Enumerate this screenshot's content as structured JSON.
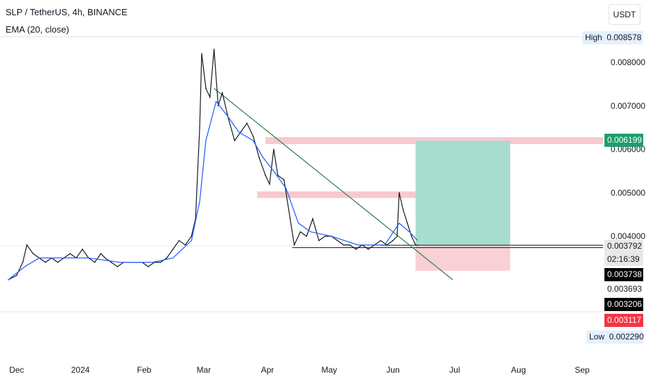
{
  "header": {
    "symbol_line": "SLP / TetherUS, 4h, BINANCE",
    "indicator_line": "EMA (20, close)"
  },
  "unit_button": "USDT",
  "colors": {
    "price": "#131722",
    "ema": "#2962ff",
    "trendline": "#2e7d4f",
    "zone": "#f7c3c9",
    "target": "#a8dccf",
    "stop": "#f9d0d6",
    "current_label": "#1e9e6b",
    "red_label": "#f23645",
    "black_label": "#000000"
  },
  "price_labels": {
    "high_caption": "High",
    "high_value": "0.008578",
    "low_caption": "Low",
    "low_value": "0.002290",
    "current": "0.006199",
    "last": "0.003792",
    "countdown": "02:16:39",
    "level_1": "0.003738",
    "level_2": "0.003693",
    "level_3": "0.003206",
    "level_4": "0.003117"
  },
  "chart_data": {
    "type": "line",
    "title": "SLP / TetherUS, 4h, BINANCE",
    "y_ticks": [
      "0.008000",
      "0.007000",
      "0.006000",
      "0.005000",
      "0.004000"
    ],
    "x_ticks": [
      "Dec",
      "2024",
      "Feb",
      "Mar",
      "Apr",
      "May",
      "Jun",
      "Jul",
      "Aug",
      "Sep"
    ],
    "x_tick_dates": [
      "2023-12-01",
      "2024-01-01",
      "2024-02-01",
      "2024-03-01",
      "2024-04-01",
      "2024-05-01",
      "2024-06-01",
      "2024-07-01",
      "2024-08-01",
      "2024-09-01"
    ],
    "ylim": [
      0.0019,
      0.0092
    ],
    "price_series": {
      "name": "SLP / TetherUS",
      "points": [
        [
          "2023-11-27",
          0.003
        ],
        [
          "2023-12-01",
          0.0031
        ],
        [
          "2023-12-04",
          0.0034
        ],
        [
          "2023-12-06",
          0.0038
        ],
        [
          "2023-12-09",
          0.0036
        ],
        [
          "2023-12-12",
          0.0035
        ],
        [
          "2023-12-15",
          0.0034
        ],
        [
          "2023-12-18",
          0.0035
        ],
        [
          "2023-12-21",
          0.0034
        ],
        [
          "2023-12-24",
          0.0035
        ],
        [
          "2023-12-27",
          0.0036
        ],
        [
          "2023-12-30",
          0.0035
        ],
        [
          "2024-01-02",
          0.0037
        ],
        [
          "2024-01-05",
          0.0035
        ],
        [
          "2024-01-08",
          0.0034
        ],
        [
          "2024-01-11",
          0.0036
        ],
        [
          "2024-01-13",
          0.0035
        ],
        [
          "2024-01-16",
          0.0034
        ],
        [
          "2024-01-19",
          0.0033
        ],
        [
          "2024-01-22",
          0.0034
        ],
        [
          "2024-01-25",
          0.0034
        ],
        [
          "2024-01-28",
          0.0034
        ],
        [
          "2024-01-31",
          0.0034
        ],
        [
          "2024-02-03",
          0.0033
        ],
        [
          "2024-02-06",
          0.0034
        ],
        [
          "2024-02-09",
          0.0034
        ],
        [
          "2024-02-12",
          0.0035
        ],
        [
          "2024-02-15",
          0.0037
        ],
        [
          "2024-02-18",
          0.0039
        ],
        [
          "2024-02-21",
          0.0038
        ],
        [
          "2024-02-24",
          0.004
        ],
        [
          "2024-02-26",
          0.0044
        ],
        [
          "2024-02-28",
          0.0065
        ],
        [
          "2024-02-29",
          0.0082
        ],
        [
          "2024-03-02",
          0.0074
        ],
        [
          "2024-03-04",
          0.0072
        ],
        [
          "2024-03-06",
          0.0083
        ],
        [
          "2024-03-08",
          0.007
        ],
        [
          "2024-03-10",
          0.0073
        ],
        [
          "2024-03-13",
          0.0067
        ],
        [
          "2024-03-16",
          0.0062
        ],
        [
          "2024-03-19",
          0.0064
        ],
        [
          "2024-03-22",
          0.0066
        ],
        [
          "2024-03-25",
          0.0063
        ],
        [
          "2024-03-28",
          0.0058
        ],
        [
          "2024-03-31",
          0.0054
        ],
        [
          "2024-04-02",
          0.0052
        ],
        [
          "2024-04-04",
          0.006
        ],
        [
          "2024-04-06",
          0.0054
        ],
        [
          "2024-04-09",
          0.0053
        ],
        [
          "2024-04-12",
          0.0044
        ],
        [
          "2024-04-14",
          0.0038
        ],
        [
          "2024-04-17",
          0.0041
        ],
        [
          "2024-04-20",
          0.004
        ],
        [
          "2024-04-23",
          0.0044
        ],
        [
          "2024-04-26",
          0.0039
        ],
        [
          "2024-04-29",
          0.004
        ],
        [
          "2024-05-02",
          0.004
        ],
        [
          "2024-05-05",
          0.0039
        ],
        [
          "2024-05-08",
          0.0038
        ],
        [
          "2024-05-11",
          0.0038
        ],
        [
          "2024-05-14",
          0.0037
        ],
        [
          "2024-05-17",
          0.0038
        ],
        [
          "2024-05-20",
          0.0037
        ],
        [
          "2024-05-23",
          0.0038
        ],
        [
          "2024-05-26",
          0.0039
        ],
        [
          "2024-05-29",
          0.0038
        ],
        [
          "2024-06-01",
          0.0039
        ],
        [
          "2024-06-03",
          0.004
        ],
        [
          "2024-06-04",
          0.005
        ],
        [
          "2024-06-06",
          0.0046
        ],
        [
          "2024-06-08",
          0.0043
        ],
        [
          "2024-06-10",
          0.004
        ],
        [
          "2024-06-12",
          0.0038
        ],
        [
          "2024-06-13",
          0.003792
        ]
      ]
    },
    "ema_series": {
      "name": "EMA (20, close)",
      "points": [
        [
          "2023-11-27",
          0.003
        ],
        [
          "2023-12-05",
          0.0033
        ],
        [
          "2023-12-12",
          0.0035
        ],
        [
          "2023-12-25",
          0.0035
        ],
        [
          "2024-01-05",
          0.0035
        ],
        [
          "2024-01-20",
          0.0034
        ],
        [
          "2024-02-05",
          0.0034
        ],
        [
          "2024-02-15",
          0.0035
        ],
        [
          "2024-02-24",
          0.0039
        ],
        [
          "2024-02-28",
          0.0048
        ],
        [
          "2024-03-02",
          0.0062
        ],
        [
          "2024-03-07",
          0.0071
        ],
        [
          "2024-03-12",
          0.0068
        ],
        [
          "2024-03-18",
          0.0064
        ],
        [
          "2024-03-25",
          0.0062
        ],
        [
          "2024-03-30",
          0.0058
        ],
        [
          "2024-04-04",
          0.0055
        ],
        [
          "2024-04-10",
          0.0051
        ],
        [
          "2024-04-16",
          0.0043
        ],
        [
          "2024-04-22",
          0.0041
        ],
        [
          "2024-05-02",
          0.004
        ],
        [
          "2024-05-15",
          0.0038
        ],
        [
          "2024-05-28",
          0.0038
        ],
        [
          "2024-06-04",
          0.0043
        ],
        [
          "2024-06-09",
          0.0041
        ],
        [
          "2024-06-13",
          0.0039
        ]
      ]
    },
    "annotations": {
      "zones": [
        {
          "start": "2024-03-31",
          "end": "2024-10-02",
          "low": 0.00612,
          "high": 0.00628
        },
        {
          "start": "2024-03-27",
          "end": "2024-06-15",
          "low": 0.00488,
          "high": 0.00503
        }
      ],
      "long_position": {
        "start": "2024-06-12",
        "end": "2024-07-28",
        "entry": 0.003792,
        "target": 0.006199,
        "stop": 0.003206
      },
      "trendline": {
        "start": [
          "2024-03-06",
          0.0074
        ],
        "end": [
          "2024-06-30",
          0.003
        ]
      },
      "horizontal_levels": [
        {
          "start": "2024-04-13",
          "end": "2024-10-02",
          "price": 0.003738
        },
        {
          "start": "2024-05-26",
          "end": "2024-10-02",
          "price": 0.003792
        }
      ]
    }
  }
}
